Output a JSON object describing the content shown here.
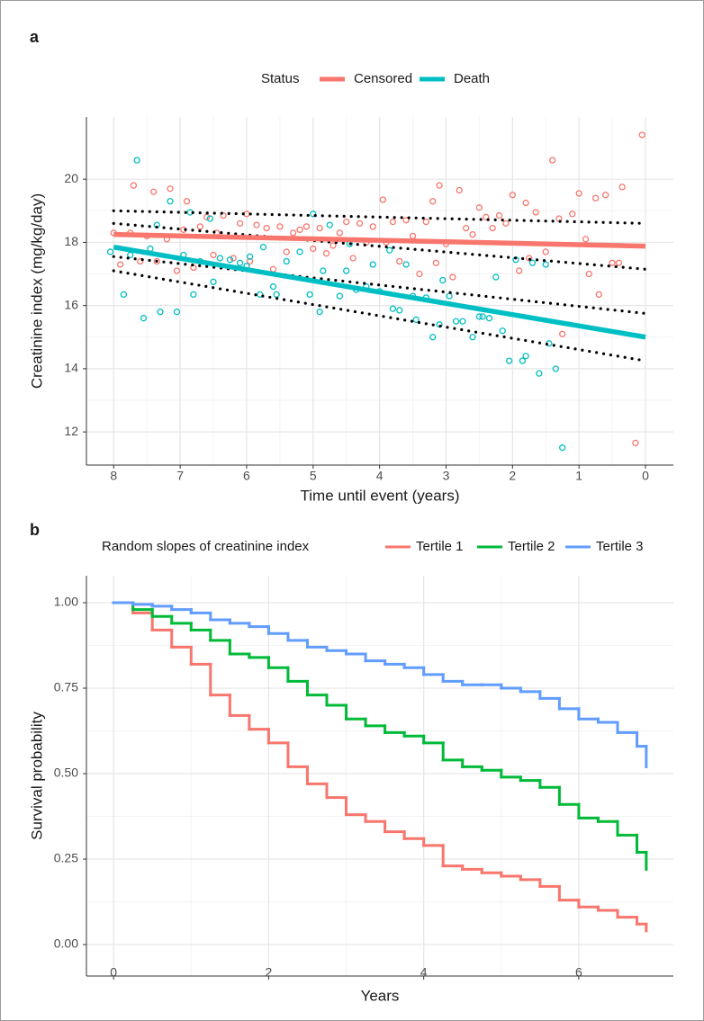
{
  "chart_data": [
    {
      "type": "scatter",
      "panel_label": "a",
      "legend_title": "Status",
      "x_label": "Time until event (years)",
      "y_label": "Creatinine index (mg/kg/day)",
      "xlim": [
        8.41,
        -0.42
      ],
      "ylim": [
        10.95,
        21.97
      ],
      "xticks": [
        8,
        7,
        6,
        5,
        4,
        3,
        2,
        1,
        0
      ],
      "yticks": [
        12,
        14,
        16,
        18,
        20
      ],
      "grid": true,
      "series": [
        {
          "name": "Censored",
          "color": "#F8766D",
          "x": [
            8.0,
            7.9,
            7.75,
            7.7,
            7.6,
            7.5,
            7.4,
            7.35,
            7.2,
            7.15,
            7.05,
            6.95,
            6.9,
            6.8,
            6.7,
            6.6,
            6.5,
            6.45,
            6.35,
            6.2,
            6.1,
            6.0,
            5.95,
            5.85,
            5.7,
            5.6,
            5.5,
            5.4,
            5.3,
            5.2,
            5.1,
            5.0,
            4.9,
            4.8,
            4.7,
            4.6,
            4.5,
            4.4,
            4.3,
            4.2,
            4.1,
            3.95,
            3.9,
            3.8,
            3.7,
            3.6,
            3.5,
            3.4,
            3.3,
            3.2,
            3.15,
            3.1,
            3.0,
            2.9,
            2.8,
            2.7,
            2.6,
            2.5,
            2.4,
            2.3,
            2.2,
            2.1,
            2.0,
            1.9,
            1.8,
            1.75,
            1.65,
            1.5,
            1.4,
            1.3,
            1.25,
            1.1,
            1.0,
            0.9,
            0.85,
            0.75,
            0.7,
            0.6,
            0.5,
            0.4,
            0.35,
            0.15,
            0.05
          ],
          "values": [
            18.3,
            17.3,
            18.3,
            19.8,
            17.4,
            18.2,
            19.6,
            17.4,
            18.1,
            19.7,
            17.1,
            18.4,
            19.3,
            17.2,
            18.5,
            18.8,
            17.6,
            18.3,
            18.85,
            17.5,
            18.6,
            18.9,
            17.4,
            18.55,
            18.45,
            17.15,
            18.5,
            17.7,
            18.3,
            18.4,
            18.5,
            17.8,
            18.45,
            17.65,
            17.9,
            18.3,
            18.65,
            17.5,
            18.6,
            18.0,
            18.5,
            19.35,
            18.0,
            18.65,
            17.4,
            18.7,
            18.2,
            17.0,
            18.65,
            19.3,
            17.35,
            19.8,
            17.95,
            16.9,
            19.65,
            18.45,
            18.25,
            19.1,
            18.8,
            18.45,
            18.85,
            18.6,
            19.5,
            17.1,
            19.25,
            17.5,
            18.95,
            17.7,
            20.6,
            18.75,
            15.1,
            18.9,
            19.55,
            18.1,
            17.0,
            19.4,
            16.35,
            19.5,
            17.35,
            17.35,
            19.75,
            11.65,
            21.4
          ],
          "fit": {
            "x": [
              8,
              0
            ],
            "values": [
              18.25,
              17.88
            ]
          }
        },
        {
          "name": "Death",
          "color": "#00BFC4",
          "x": [
            8.05,
            7.85,
            7.75,
            7.65,
            7.55,
            7.45,
            7.35,
            7.3,
            7.15,
            7.05,
            6.95,
            6.85,
            6.8,
            6.7,
            6.55,
            6.5,
            6.4,
            6.25,
            6.1,
            6.0,
            5.95,
            5.8,
            5.75,
            5.6,
            5.55,
            5.4,
            5.2,
            5.05,
            5.0,
            4.9,
            4.85,
            4.75,
            4.6,
            4.5,
            4.45,
            4.35,
            4.2,
            4.1,
            4.0,
            3.85,
            3.8,
            3.7,
            3.6,
            3.5,
            3.45,
            3.3,
            3.2,
            3.1,
            3.05,
            2.95,
            2.85,
            2.75,
            2.6,
            2.5,
            2.45,
            2.35,
            2.25,
            2.15,
            2.05,
            1.95,
            1.85,
            1.8,
            1.7,
            1.6,
            1.5,
            1.45,
            1.35,
            1.25
          ],
          "values": [
            17.7,
            16.35,
            17.6,
            20.6,
            15.6,
            17.8,
            18.55,
            15.8,
            19.3,
            15.8,
            17.6,
            18.95,
            16.35,
            17.4,
            18.75,
            16.75,
            17.5,
            17.45,
            17.35,
            17.25,
            17.55,
            16.35,
            17.85,
            16.6,
            16.35,
            17.4,
            17.7,
            16.35,
            18.9,
            15.8,
            17.1,
            18.55,
            16.3,
            17.1,
            17.95,
            16.5,
            16.6,
            17.3,
            16.45,
            17.75,
            15.9,
            15.85,
            17.3,
            16.3,
            15.55,
            16.25,
            15.0,
            15.4,
            16.8,
            16.3,
            15.5,
            15.5,
            15.0,
            15.65,
            15.65,
            15.6,
            16.9,
            15.2,
            14.25,
            17.45,
            14.25,
            14.4,
            17.35,
            13.85,
            17.3,
            14.8,
            14.0,
            11.5
          ],
          "fit": {
            "x": [
              8,
              0
            ],
            "values": [
              17.85,
              15.0
            ]
          }
        }
      ],
      "reference_lines": {
        "color": "#000000",
        "style": "dotted",
        "lines": [
          {
            "x": [
              8,
              0
            ],
            "values": [
              19.0,
              18.6
            ]
          },
          {
            "x": [
              8,
              0
            ],
            "values": [
              18.6,
              17.15
            ]
          },
          {
            "x": [
              8,
              0
            ],
            "values": [
              17.55,
              15.75
            ]
          },
          {
            "x": [
              8,
              0
            ],
            "values": [
              17.1,
              14.25
            ]
          }
        ]
      }
    },
    {
      "type": "step",
      "panel_label": "b",
      "legend_title": "Random slopes of creatinine index",
      "x_label": "Years",
      "y_label": "Survival probability",
      "xlim": [
        -0.35,
        7.22
      ],
      "ylim": [
        -0.092,
        1.079
      ],
      "xticks": [
        0,
        2,
        4,
        6
      ],
      "yticks": [
        {
          "value": 0,
          "label": "0.00"
        },
        {
          "value": 0.25,
          "label": "0.25"
        },
        {
          "value": 0.5,
          "label": "0.50"
        },
        {
          "value": 0.75,
          "label": "0.75"
        },
        {
          "value": 1,
          "label": "1.00"
        }
      ],
      "grid": true,
      "x": [
        0,
        0.25,
        0.5,
        0.75,
        1,
        1.25,
        1.5,
        1.75,
        2,
        2.25,
        2.5,
        2.75,
        3,
        3.25,
        3.5,
        3.75,
        4,
        4.25,
        4.5,
        4.75,
        5,
        5.25,
        5.5,
        5.75,
        6,
        6.25,
        6.5,
        6.75,
        6.87
      ],
      "series": [
        {
          "name": "Tertile 1",
          "color": "#F8766D",
          "values": [
            1.0,
            0.97,
            0.92,
            0.87,
            0.82,
            0.73,
            0.67,
            0.63,
            0.59,
            0.52,
            0.47,
            0.43,
            0.38,
            0.36,
            0.33,
            0.31,
            0.29,
            0.23,
            0.22,
            0.21,
            0.2,
            0.19,
            0.17,
            0.13,
            0.11,
            0.1,
            0.08,
            0.06,
            0.04
          ]
        },
        {
          "name": "Tertile 2",
          "color": "#00BA38",
          "values": [
            1.0,
            0.98,
            0.96,
            0.94,
            0.92,
            0.89,
            0.85,
            0.84,
            0.81,
            0.77,
            0.73,
            0.7,
            0.66,
            0.64,
            0.62,
            0.61,
            0.59,
            0.54,
            0.52,
            0.51,
            0.49,
            0.48,
            0.46,
            0.41,
            0.37,
            0.36,
            0.32,
            0.27,
            0.22
          ]
        },
        {
          "name": "Tertile 3",
          "color": "#619CFF",
          "values": [
            1.0,
            0.995,
            0.99,
            0.98,
            0.97,
            0.95,
            0.94,
            0.93,
            0.91,
            0.89,
            0.87,
            0.86,
            0.85,
            0.83,
            0.82,
            0.81,
            0.79,
            0.77,
            0.76,
            0.76,
            0.75,
            0.74,
            0.72,
            0.69,
            0.66,
            0.65,
            0.62,
            0.58,
            0.52
          ]
        }
      ]
    }
  ]
}
